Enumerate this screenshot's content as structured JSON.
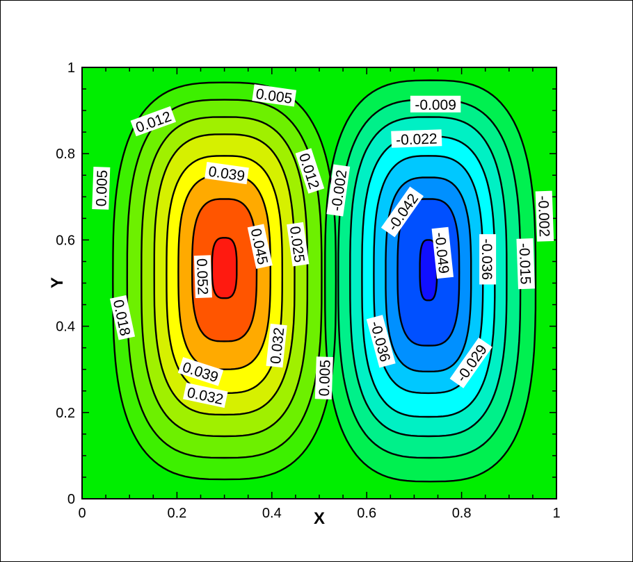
{
  "chart_data": {
    "type": "contour",
    "title": "",
    "xlabel": "X",
    "ylabel": "Y",
    "xlim": [
      0,
      1
    ],
    "ylim": [
      0,
      1
    ],
    "x_ticks": [
      0,
      0.2,
      0.4,
      0.6,
      0.8,
      1
    ],
    "y_ticks": [
      0,
      0.2,
      0.4,
      0.6,
      0.8,
      1
    ],
    "x_tick_labels": [
      "0",
      "0.2",
      "0.4",
      "0.6",
      "0.8",
      "1"
    ],
    "y_tick_labels": [
      "0",
      "0.2",
      "0.4",
      "0.6",
      "0.8",
      "1"
    ],
    "background_color": "#00ee00",
    "line_color": "#000000",
    "grid": false,
    "legend": "none",
    "vortices": [
      {
        "sign": "positive",
        "center": [
          0.3,
          0.53
        ],
        "levels": [
          {
            "value": 0.005,
            "color": "#3df000",
            "rx": 0.235,
            "ry": 0.46,
            "cx": 0.3,
            "cy": 0.505
          },
          {
            "value": 0.012,
            "color": "#6df000",
            "rx": 0.205,
            "ry": 0.415,
            "cx": 0.3,
            "cy": 0.51
          },
          {
            "value": 0.018,
            "color": "#a0f000",
            "rx": 0.175,
            "ry": 0.37,
            "cx": 0.3,
            "cy": 0.515
          },
          {
            "value": 0.025,
            "color": "#d6f000",
            "rx": 0.148,
            "ry": 0.325,
            "cx": 0.3,
            "cy": 0.52
          },
          {
            "value": 0.032,
            "color": "#ffff00",
            "rx": 0.122,
            "ry": 0.275,
            "cx": 0.3,
            "cy": 0.52
          },
          {
            "value": 0.039,
            "color": "#ffaa00",
            "rx": 0.097,
            "ry": 0.225,
            "cx": 0.3,
            "cy": 0.525
          },
          {
            "value": 0.045,
            "color": "#ff5500",
            "rx": 0.068,
            "ry": 0.165,
            "cx": 0.3,
            "cy": 0.53
          },
          {
            "value": 0.052,
            "color": "#ff1a10",
            "rx": 0.026,
            "ry": 0.07,
            "cx": 0.3,
            "cy": 0.535
          }
        ]
      },
      {
        "sign": "negative",
        "center": [
          0.73,
          0.53
        ],
        "levels": [
          {
            "value": -0.002,
            "color": "#00f050",
            "rx": 0.222,
            "ry": 0.465,
            "cx": 0.734,
            "cy": 0.505
          },
          {
            "value": -0.009,
            "color": "#00f08a",
            "rx": 0.192,
            "ry": 0.415,
            "cx": 0.732,
            "cy": 0.51
          },
          {
            "value": -0.015,
            "color": "#00f0c4",
            "rx": 0.165,
            "ry": 0.37,
            "cx": 0.73,
            "cy": 0.515
          },
          {
            "value": -0.022,
            "color": "#00ffff",
            "rx": 0.14,
            "ry": 0.325,
            "cx": 0.73,
            "cy": 0.515
          },
          {
            "value": -0.029,
            "color": "#00c8ff",
            "rx": 0.115,
            "ry": 0.275,
            "cx": 0.73,
            "cy": 0.52
          },
          {
            "value": -0.036,
            "color": "#0090ff",
            "rx": 0.09,
            "ry": 0.225,
            "cx": 0.73,
            "cy": 0.52
          },
          {
            "value": -0.042,
            "color": "#0050ff",
            "rx": 0.065,
            "ry": 0.17,
            "cx": 0.73,
            "cy": 0.525
          },
          {
            "value": -0.049,
            "color": "#1010ff",
            "rx": 0.018,
            "ry": 0.07,
            "cx": 0.73,
            "cy": 0.53
          }
        ]
      }
    ],
    "contour_labels": [
      {
        "text": "0.005",
        "x": 0.405,
        "y": 0.935,
        "angle": 8
      },
      {
        "text": "0.012",
        "x": 0.15,
        "y": 0.875,
        "angle": -20
      },
      {
        "text": "0.012",
        "x": 0.48,
        "y": 0.76,
        "angle": 72
      },
      {
        "text": "0.005",
        "x": 0.04,
        "y": 0.72,
        "angle": -88
      },
      {
        "text": "0.039",
        "x": 0.305,
        "y": 0.755,
        "angle": 8
      },
      {
        "text": "-0.002",
        "x": 0.54,
        "y": 0.715,
        "angle": -82
      },
      {
        "text": "0.045",
        "x": 0.375,
        "y": 0.585,
        "angle": 78
      },
      {
        "text": "0.025",
        "x": 0.455,
        "y": 0.59,
        "angle": 82
      },
      {
        "text": "0.052",
        "x": 0.255,
        "y": 0.515,
        "angle": 88
      },
      {
        "text": "0.018",
        "x": 0.085,
        "y": 0.42,
        "angle": 78
      },
      {
        "text": "0.032",
        "x": 0.41,
        "y": 0.355,
        "angle": -84
      },
      {
        "text": "0.039",
        "x": 0.25,
        "y": 0.295,
        "angle": 18
      },
      {
        "text": "0.032",
        "x": 0.26,
        "y": 0.24,
        "angle": 12
      },
      {
        "text": "0.005",
        "x": 0.51,
        "y": 0.28,
        "angle": -88
      },
      {
        "text": "-0.009",
        "x": 0.745,
        "y": 0.915,
        "angle": 0
      },
      {
        "text": "-0.022",
        "x": 0.705,
        "y": 0.835,
        "angle": -2
      },
      {
        "text": "-0.042",
        "x": 0.675,
        "y": 0.665,
        "angle": -55
      },
      {
        "text": "-0.049",
        "x": 0.76,
        "y": 0.57,
        "angle": 84
      },
      {
        "text": "-0.036",
        "x": 0.855,
        "y": 0.555,
        "angle": 90
      },
      {
        "text": "-0.015",
        "x": 0.935,
        "y": 0.545,
        "angle": 88
      },
      {
        "text": "-0.002",
        "x": 0.975,
        "y": 0.655,
        "angle": 88
      },
      {
        "text": "-0.036",
        "x": 0.63,
        "y": 0.365,
        "angle": 75
      },
      {
        "text": "-0.029",
        "x": 0.82,
        "y": 0.315,
        "angle": -55
      }
    ]
  }
}
